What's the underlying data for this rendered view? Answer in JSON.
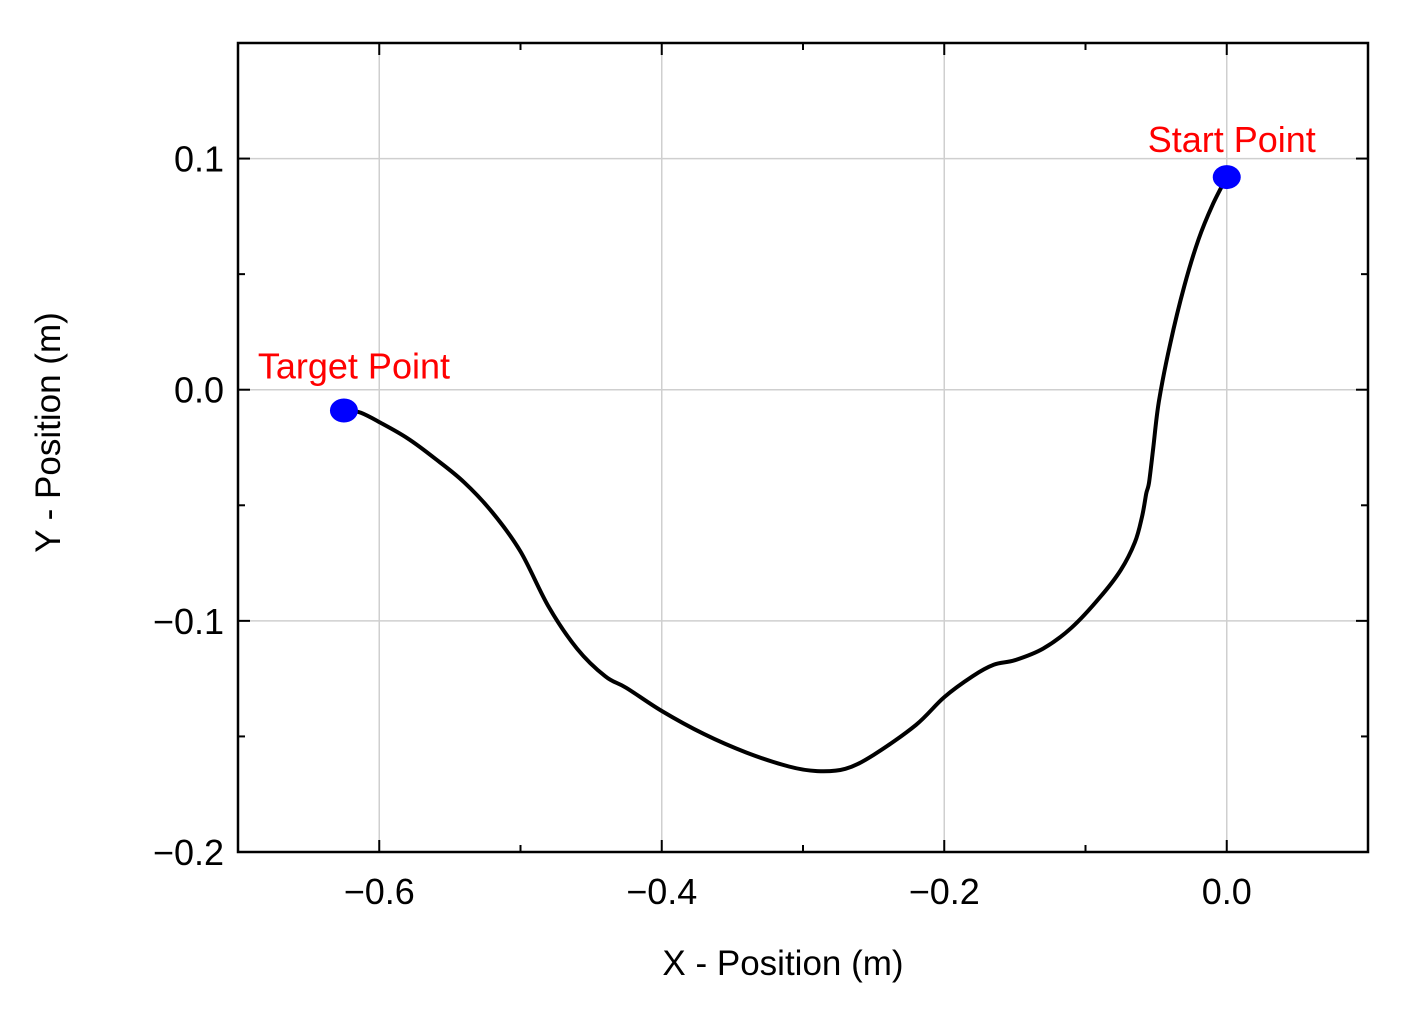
{
  "chart_data": {
    "type": "line",
    "xlabel": "X - Position (m)",
    "ylabel": "Y - Position (m)",
    "xlim": [
      -0.7,
      0.1
    ],
    "ylim": [
      -0.2,
      0.15
    ],
    "xticks": [
      -0.6,
      -0.4,
      -0.2,
      0.0
    ],
    "xtick_labels": [
      "−0.6",
      "−0.4",
      "−0.2",
      "0.0"
    ],
    "xminor": [
      -0.5,
      -0.3,
      -0.1
    ],
    "yticks": [
      -0.2,
      -0.1,
      0.0,
      0.1
    ],
    "ytick_labels": [
      "−0.2",
      "−0.1",
      "0.0",
      "0.1"
    ],
    "yminor": [
      -0.15,
      -0.05,
      0.05
    ],
    "grid": true,
    "line_color": "#000000",
    "marker_color": "#0000ff",
    "annotation_color": "#ff0000",
    "series": [
      {
        "x": [
          0.0,
          -0.01,
          -0.02,
          -0.03,
          -0.04,
          -0.048,
          -0.052,
          -0.055,
          -0.057,
          -0.06,
          -0.065,
          -0.075,
          -0.09,
          -0.11,
          -0.13,
          -0.15,
          -0.165,
          -0.18,
          -0.2,
          -0.22,
          -0.25,
          -0.27,
          -0.29,
          -0.31,
          -0.34,
          -0.37,
          -0.4,
          -0.425,
          -0.44,
          -0.46,
          -0.48,
          -0.5,
          -0.52,
          -0.54,
          -0.56,
          -0.58,
          -0.6,
          -0.613,
          -0.625
        ],
        "y": [
          0.092,
          0.08,
          0.065,
          0.045,
          0.02,
          -0.005,
          -0.025,
          -0.04,
          -0.045,
          -0.055,
          -0.066,
          -0.078,
          -0.09,
          -0.103,
          -0.112,
          -0.117,
          -0.119,
          -0.124,
          -0.133,
          -0.145,
          -0.158,
          -0.164,
          -0.165,
          -0.163,
          -0.157,
          -0.149,
          -0.139,
          -0.129,
          -0.124,
          -0.112,
          -0.094,
          -0.07,
          -0.053,
          -0.04,
          -0.03,
          -0.021,
          -0.014,
          -0.01,
          -0.008
        ]
      }
    ],
    "points": [
      {
        "label": "Start Point",
        "x": 0.0,
        "y": 0.092
      },
      {
        "label": "Target Point",
        "x": -0.625,
        "y": -0.009
      }
    ]
  }
}
